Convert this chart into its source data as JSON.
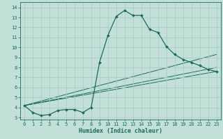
{
  "xlabel": "Humidex (Indice chaleur)",
  "bg_color": "#c2e0d8",
  "grid_color": "#a8ccc4",
  "line_color": "#1a6b5a",
  "xlim": [
    -0.5,
    23.5
  ],
  "ylim": [
    2.8,
    14.5
  ],
  "xticks": [
    0,
    1,
    2,
    3,
    4,
    5,
    6,
    7,
    8,
    9,
    10,
    11,
    12,
    13,
    14,
    15,
    16,
    17,
    18,
    19,
    20,
    21,
    22,
    23
  ],
  "yticks": [
    3,
    4,
    5,
    6,
    7,
    8,
    9,
    10,
    11,
    12,
    13,
    14
  ],
  "main_x": [
    0,
    1,
    2,
    3,
    4,
    5,
    6,
    7,
    8,
    9,
    10,
    11,
    12,
    13,
    14,
    15,
    16,
    17,
    18,
    19,
    20,
    21,
    22,
    23
  ],
  "main_y": [
    4.2,
    3.5,
    3.2,
    3.3,
    3.7,
    3.8,
    3.8,
    3.5,
    4.0,
    8.5,
    11.2,
    13.1,
    13.7,
    13.2,
    13.2,
    11.8,
    11.5,
    10.1,
    9.3,
    8.8,
    8.5,
    8.2,
    7.8,
    7.6
  ],
  "trend1_x": [
    0,
    23
  ],
  "trend1_y": [
    4.2,
    9.3
  ],
  "trend2_x": [
    0,
    23
  ],
  "trend2_y": [
    4.2,
    8.0
  ],
  "trend3_x": [
    0,
    23
  ],
  "trend3_y": [
    4.2,
    7.6
  ],
  "xlabel_fontsize": 6.0,
  "tick_fontsize": 5.0
}
